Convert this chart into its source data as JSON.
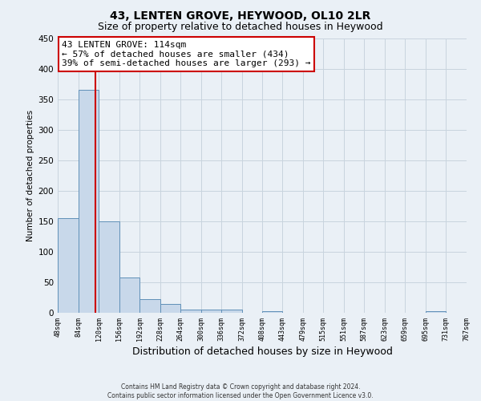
{
  "title": "43, LENTEN GROVE, HEYWOOD, OL10 2LR",
  "subtitle": "Size of property relative to detached houses in Heywood",
  "xlabel": "Distribution of detached houses by size in Heywood",
  "ylabel": "Number of detached properties",
  "bin_edges": [
    48,
    84,
    120,
    156,
    192,
    228,
    264,
    300,
    336,
    372,
    408,
    443,
    479,
    515,
    551,
    587,
    623,
    659,
    695,
    731,
    767
  ],
  "bin_labels": [
    "48sqm",
    "84sqm",
    "120sqm",
    "156sqm",
    "192sqm",
    "228sqm",
    "264sqm",
    "300sqm",
    "336sqm",
    "372sqm",
    "408sqm",
    "443sqm",
    "479sqm",
    "515sqm",
    "551sqm",
    "587sqm",
    "623sqm",
    "659sqm",
    "695sqm",
    "731sqm",
    "767sqm"
  ],
  "counts": [
    155,
    365,
    150,
    58,
    22,
    15,
    5,
    5,
    5,
    0,
    2,
    0,
    0,
    0,
    0,
    0,
    0,
    0,
    3,
    0
  ],
  "bar_color": "#c8d8ea",
  "bar_edge_color": "#6090b8",
  "vline_x": 114,
  "vline_color": "#cc0000",
  "annotation_text": "43 LENTEN GROVE: 114sqm\n← 57% of detached houses are smaller (434)\n39% of semi-detached houses are larger (293) →",
  "annotation_box_color": "#ffffff",
  "annotation_box_edge_color": "#cc0000",
  "ylim": [
    0,
    450
  ],
  "yticks": [
    0,
    50,
    100,
    150,
    200,
    250,
    300,
    350,
    400,
    450
  ],
  "footer1": "Contains HM Land Registry data © Crown copyright and database right 2024.",
  "footer2": "Contains public sector information licensed under the Open Government Licence v3.0.",
  "grid_color": "#c8d4de",
  "plot_bg_color": "#eaf0f6",
  "fig_bg_color": "#eaf0f6",
  "title_fontsize": 10,
  "subtitle_fontsize": 9
}
